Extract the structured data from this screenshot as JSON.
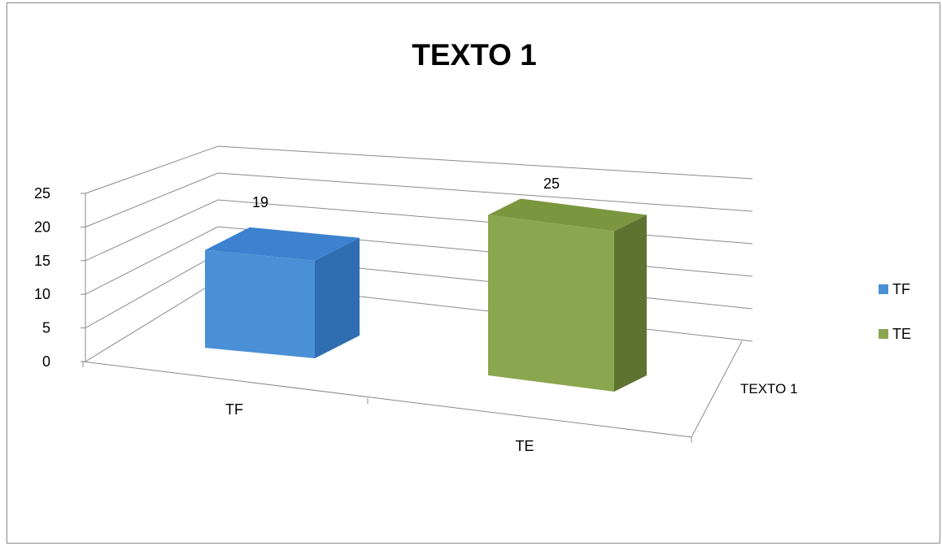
{
  "chart_data": {
    "type": "bar",
    "title": "TEXTO 1",
    "categories": [
      "TF",
      "TE"
    ],
    "depth_label": "TEXTO 1",
    "series": [
      {
        "name": "TF",
        "values": [
          19,
          null
        ],
        "color": "#4a90d6",
        "side_color": "#2f6db0",
        "top_color": "#3c82cf"
      },
      {
        "name": "TE",
        "values": [
          null,
          25
        ],
        "color": "#8aa64e",
        "side_color": "#5e7332",
        "top_color": "#7a963f"
      }
    ],
    "ylim": [
      0,
      25
    ],
    "yticks": [
      "0",
      "5",
      "10",
      "15",
      "20",
      "25"
    ],
    "grid": true,
    "legend": "right",
    "three_d": true
  }
}
